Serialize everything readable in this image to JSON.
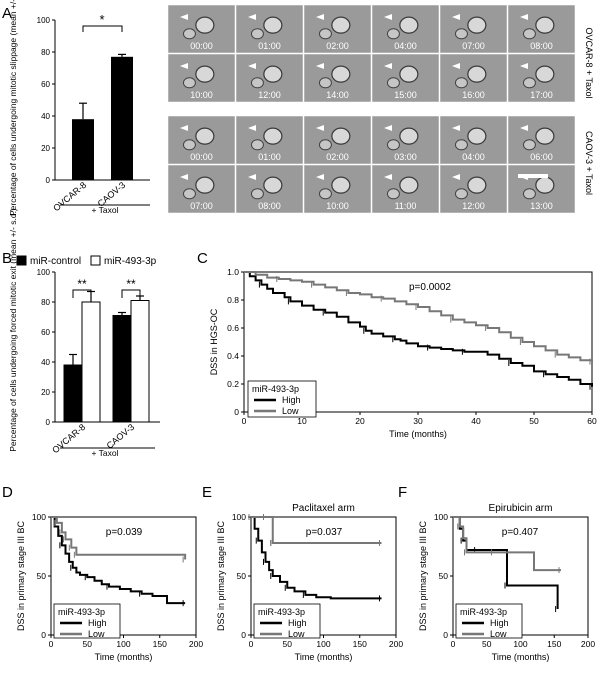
{
  "panel_labels": {
    "A": "A",
    "B": "B",
    "C": "C",
    "D": "D",
    "E": "E",
    "F": "F"
  },
  "panel_A": {
    "chart_data": {
      "type": "bar",
      "categories": [
        "OVCAR-8",
        "CAOV-3"
      ],
      "values": [
        38,
        77
      ],
      "errors": [
        10,
        1.5
      ],
      "ylabel": "Percentage of cells undergoing mitotic slippage (mean +/- s.d.)",
      "ylim": [
        0,
        100
      ],
      "yticks": [
        "0",
        "20",
        "40",
        "60",
        "80",
        "100"
      ],
      "significance": "*",
      "group_label": "+ Taxol"
    },
    "micrographs": {
      "row_labels": [
        "OVCAR-8 + Taxol",
        "CAOV-3 + Taxol"
      ],
      "ovcar8_times": [
        "00:00",
        "01:00",
        "02:00",
        "04:00",
        "07:00",
        "08:00",
        "10:00",
        "12:00",
        "14:00",
        "15:00",
        "16:00",
        "17:00"
      ],
      "caov3_times": [
        "00:00",
        "01:00",
        "02:00",
        "03:00",
        "04:00",
        "06:00",
        "07:00",
        "08:00",
        "10:00",
        "11:00",
        "12:00",
        "13:00"
      ]
    }
  },
  "panel_B": {
    "chart_data": {
      "type": "bar",
      "categories": [
        "OVCAR-8",
        "CAOV-3"
      ],
      "series": [
        {
          "name": "miR-control",
          "values": [
            38,
            71
          ],
          "errors": [
            7,
            2
          ],
          "color": "#000000"
        },
        {
          "name": "miR-493-3p",
          "values": [
            80,
            81
          ],
          "errors": [
            7,
            3
          ],
          "color": "#ffffff"
        }
      ],
      "ylabel": "Percentage of cells undergoing forced mitotic exit (mean +/- s.d.)",
      "ylim": [
        0,
        100
      ],
      "yticks": [
        "0",
        "20",
        "40",
        "60",
        "80",
        "100"
      ],
      "significance": [
        "**",
        "**"
      ],
      "group_label": "+ Taxol",
      "legend": "top"
    }
  },
  "panel_C": {
    "chart_data": {
      "type": "line",
      "ylabel": "DSS in HGS-OC",
      "xlabel": "Time (months)",
      "xlim": [
        0,
        60
      ],
      "ylim": [
        0,
        1
      ],
      "xticks": [
        "0",
        "10",
        "20",
        "30",
        "40",
        "50",
        "60"
      ],
      "yticks": [
        "0",
        "0.2",
        "0.4",
        "0.6",
        "0.8",
        "1.0"
      ],
      "pvalue": "p=0.0002",
      "legend_title": "miR-493-3p",
      "series": [
        {
          "name": "High",
          "color": "#000000",
          "x": [
            0,
            1,
            2,
            3,
            4,
            5,
            7,
            8,
            10,
            12,
            14,
            16,
            18,
            20,
            21,
            22,
            24,
            26,
            27,
            28,
            30,
            32,
            34,
            36,
            38,
            40,
            42,
            44,
            46,
            48,
            50,
            52,
            54,
            56,
            58,
            60
          ],
          "y": [
            1,
            0.97,
            0.94,
            0.91,
            0.88,
            0.85,
            0.82,
            0.79,
            0.76,
            0.73,
            0.71,
            0.68,
            0.64,
            0.61,
            0.58,
            0.56,
            0.54,
            0.52,
            0.51,
            0.49,
            0.47,
            0.46,
            0.45,
            0.44,
            0.43,
            0.43,
            0.41,
            0.38,
            0.35,
            0.33,
            0.29,
            0.27,
            0.25,
            0.23,
            0.2,
            0.18
          ]
        },
        {
          "name": "Low",
          "color": "#777777",
          "x": [
            0,
            2,
            4,
            6,
            8,
            10,
            12,
            14,
            16,
            18,
            20,
            22,
            24,
            26,
            28,
            30,
            32,
            34,
            36,
            38,
            40,
            42,
            44,
            46,
            48,
            50,
            52,
            54,
            56,
            58,
            60
          ],
          "y": [
            1,
            0.98,
            0.96,
            0.95,
            0.94,
            0.93,
            0.91,
            0.89,
            0.87,
            0.85,
            0.84,
            0.82,
            0.81,
            0.79,
            0.77,
            0.75,
            0.72,
            0.69,
            0.66,
            0.64,
            0.62,
            0.6,
            0.57,
            0.53,
            0.5,
            0.47,
            0.44,
            0.41,
            0.39,
            0.37,
            0.36
          ]
        }
      ]
    }
  },
  "panel_D": {
    "chart_data": {
      "type": "line",
      "ylabel": "DSS in primary stage III BC",
      "xlabel": "Time (months)",
      "xlim": [
        0,
        200
      ],
      "ylim": [
        0,
        100
      ],
      "xticks": [
        "0",
        "50",
        "100",
        "150",
        "200"
      ],
      "yticks": [
        "0",
        "50",
        "100"
      ],
      "pvalue": "p=0.039",
      "legend_title": "miR-493-3p",
      "series": [
        {
          "name": "High",
          "color": "#000000",
          "x": [
            0,
            5,
            10,
            15,
            20,
            25,
            30,
            35,
            40,
            50,
            60,
            70,
            80,
            95,
            110,
            125,
            140,
            150,
            160,
            185
          ],
          "y": [
            100,
            92,
            84,
            76,
            69,
            62,
            57,
            53,
            51,
            49,
            46,
            43,
            41,
            39,
            37,
            35,
            33,
            33,
            27,
            27
          ]
        },
        {
          "name": "Low",
          "color": "#777777",
          "x": [
            0,
            8,
            15,
            20,
            28,
            35,
            120,
            185
          ],
          "y": [
            100,
            95,
            87,
            81,
            74,
            68,
            68,
            64
          ]
        }
      ]
    }
  },
  "panel_E": {
    "chart_data": {
      "type": "line",
      "title": "Paclitaxel arm",
      "ylabel": "DSS in primary stage III BC",
      "xlabel": "Time (months)",
      "xlim": [
        0,
        200
      ],
      "ylim": [
        0,
        100
      ],
      "xticks": [
        "0",
        "50",
        "100",
        "150",
        "200"
      ],
      "yticks": [
        "0",
        "50",
        "100"
      ],
      "pvalue": "p=0.037",
      "legend_title": "miR-493-3p",
      "series": [
        {
          "name": "High",
          "color": "#000000",
          "x": [
            0,
            5,
            10,
            15,
            20,
            25,
            30,
            40,
            50,
            60,
            75,
            90,
            110,
            180
          ],
          "y": [
            100,
            90,
            80,
            70,
            62,
            55,
            50,
            45,
            40,
            37,
            34,
            32,
            31,
            31
          ]
        },
        {
          "name": "Low",
          "color": "#777777",
          "x": [
            0,
            20,
            30,
            180
          ],
          "y": [
            100,
            100,
            78,
            78
          ]
        }
      ]
    }
  },
  "panel_F": {
    "chart_data": {
      "type": "line",
      "title": "Epirubicin arm",
      "ylabel": "DSS in primary stage III BC",
      "xlabel": "Time (months)",
      "xlim": [
        0,
        200
      ],
      "ylim": [
        0,
        100
      ],
      "xticks": [
        "0",
        "50",
        "100",
        "150",
        "200"
      ],
      "yticks": [
        "0",
        "50",
        "100"
      ],
      "pvalue": "p=0.407",
      "legend_title": "miR-493-3p",
      "series": [
        {
          "name": "High",
          "color": "#000000",
          "x": [
            0,
            10,
            15,
            20,
            35,
            50,
            80,
            120,
            150,
            155
          ],
          "y": [
            100,
            90,
            80,
            72,
            72,
            72,
            42,
            42,
            42,
            22
          ]
        },
        {
          "name": "Low",
          "color": "#777777",
          "x": [
            0,
            10,
            15,
            20,
            60,
            120,
            160
          ],
          "y": [
            100,
            92,
            82,
            70,
            70,
            55,
            55
          ]
        }
      ]
    }
  }
}
